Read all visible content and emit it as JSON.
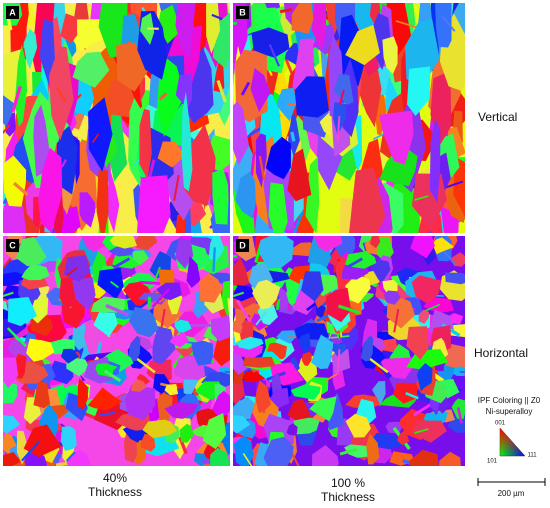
{
  "panels": [
    {
      "label": "A"
    },
    {
      "label": "B"
    },
    {
      "label": "C"
    },
    {
      "label": "D"
    }
  ],
  "row_labels": [
    "Vertical",
    "Horizontal"
  ],
  "column_labels": [
    {
      "line1": "40%",
      "line2": "Thickness"
    },
    {
      "line1": "100 %",
      "line2": "Thickness"
    }
  ],
  "legend": {
    "title": "IPF Coloring || Z0",
    "subtitle": "Ni-superalloy",
    "top": "001",
    "left": "101",
    "right": "111"
  },
  "scale_bar": "200 µm"
}
